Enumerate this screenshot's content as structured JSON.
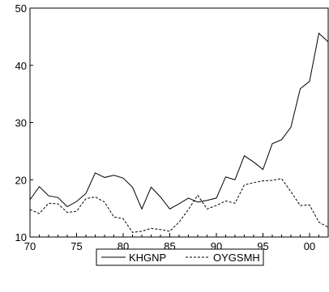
{
  "chart_data": {
    "type": "line",
    "x": [
      1970,
      1971,
      1972,
      1973,
      1974,
      1975,
      1976,
      1977,
      1978,
      1979,
      1980,
      1981,
      1982,
      1983,
      1984,
      1985,
      1986,
      1987,
      1988,
      1989,
      1990,
      1991,
      1992,
      1993,
      1994,
      1995,
      1996,
      1997,
      1998,
      1999,
      2000,
      2001,
      2002
    ],
    "series": [
      {
        "name": "KHGNP",
        "style": "solid",
        "values": [
          16.5,
          18.8,
          17.2,
          16.9,
          15.3,
          16.2,
          17.6,
          21.2,
          20.4,
          20.8,
          20.3,
          18.7,
          14.9,
          18.7,
          17.0,
          14.9,
          15.8,
          16.8,
          16.1,
          16.4,
          16.8,
          20.5,
          20.0,
          24.2,
          23.1,
          21.8,
          26.3,
          27.0,
          29.2,
          35.9,
          37.2,
          45.6,
          44.1
        ]
      },
      {
        "name": "OYGSMH",
        "style": "dashed",
        "values": [
          14.8,
          14.1,
          15.9,
          15.8,
          14.3,
          14.5,
          16.7,
          17.0,
          16.1,
          13.5,
          13.2,
          10.8,
          11.0,
          11.5,
          11.3,
          11.0,
          12.6,
          14.8,
          17.3,
          14.9,
          15.5,
          16.3,
          15.9,
          19.1,
          19.5,
          19.8,
          19.9,
          20.2,
          17.9,
          15.5,
          15.6,
          12.6,
          11.7
        ]
      }
    ],
    "xlim": [
      1970,
      2002
    ],
    "ylim": [
      10,
      50
    ],
    "x_tick_values": [
      1970,
      1975,
      1980,
      1985,
      1990,
      1995,
      2000
    ],
    "x_tick_labels": [
      "70",
      "75",
      "80",
      "85",
      "90",
      "95",
      "00"
    ],
    "y_tick_values": [
      10,
      20,
      30,
      40,
      50
    ],
    "y_tick_labels": [
      "10",
      "20",
      "30",
      "40",
      "50"
    ],
    "grid": false,
    "legend_position": "bottom-center",
    "colors": {
      "line": "#000000",
      "frame": "#000000",
      "background": "#ffffff"
    }
  }
}
